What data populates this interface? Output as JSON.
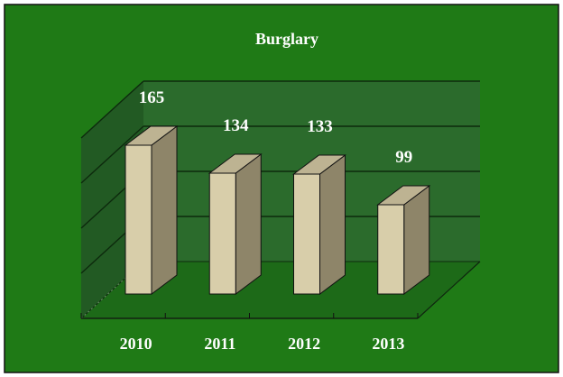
{
  "chart_data": {
    "type": "bar",
    "title": "Burglary",
    "categories": [
      "2010",
      "2011",
      "2012",
      "2013"
    ],
    "values": [
      165,
      134,
      133,
      99
    ],
    "xlabel": "",
    "ylabel": "",
    "ylim": [
      0,
      200
    ],
    "grid": true,
    "three_d": true,
    "colors": {
      "frame_background": "#1f7a16",
      "plot_wall": "#2b6b2c",
      "side_wall": "#225a23",
      "floor": "#1d6a18",
      "grid_line": "#0d2a0d",
      "bar_front": "#d8ceaa",
      "bar_side": "#8e8569",
      "bar_top": "#bdb392",
      "text": "#ffffff"
    }
  }
}
